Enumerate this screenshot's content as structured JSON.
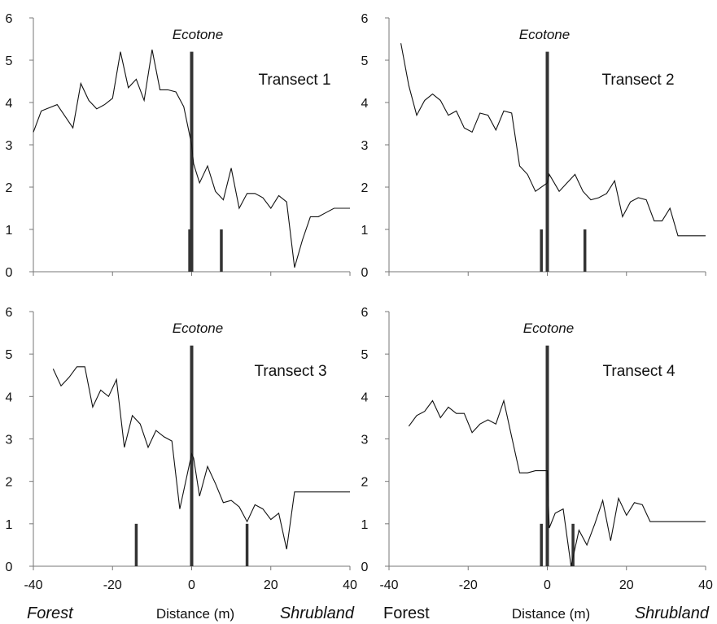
{
  "chart_data": [
    {
      "type": "line",
      "title": "Transect 1",
      "annotation": "Ecotone",
      "xlim": [
        -40,
        40
      ],
      "ylim": [
        0,
        6
      ],
      "xticks": [
        -40,
        -20,
        0,
        20,
        40
      ],
      "yticks": [
        0,
        1,
        2,
        3,
        4,
        5,
        6
      ],
      "series": [
        {
          "x": [
            -40,
            -38,
            -34,
            -30,
            -28,
            -26,
            -24,
            -22,
            -20,
            -18,
            -16,
            -14,
            -12,
            -10,
            -8,
            -6,
            -4,
            -2,
            0,
            0.5,
            2,
            4,
            6,
            8,
            10,
            12,
            14,
            16,
            18,
            20,
            22,
            24,
            26,
            28,
            30,
            32,
            34,
            36,
            38,
            40
          ],
          "y": [
            3.3,
            3.8,
            3.95,
            3.4,
            4.45,
            4.05,
            3.85,
            3.95,
            4.1,
            5.2,
            4.35,
            4.55,
            4.05,
            5.25,
            4.3,
            4.3,
            4.25,
            3.9,
            3.0,
            2.55,
            2.1,
            2.5,
            1.9,
            1.7,
            2.45,
            1.5,
            1.85,
            1.85,
            1.75,
            1.5,
            1.8,
            1.65,
            0.1,
            0.75,
            1.3,
            1.3,
            1.4,
            1.5,
            1.5,
            1.5
          ]
        }
      ],
      "bars": [
        {
          "x": -0.5,
          "y": 1.0
        },
        {
          "x": 0,
          "y": 5.2
        },
        {
          "x": 7.5,
          "y": 1.0
        }
      ]
    },
    {
      "type": "line",
      "title": "Transect 2",
      "annotation": "Ecotone",
      "xlim": [
        -40,
        40
      ],
      "ylim": [
        0,
        6
      ],
      "xticks": [
        -40,
        -20,
        0,
        20,
        40
      ],
      "yticks": [
        0,
        1,
        2,
        3,
        4,
        5,
        6
      ],
      "series": [
        {
          "x": [
            -37,
            -35,
            -33,
            -31,
            -29,
            -27,
            -25,
            -23,
            -21,
            -19,
            -17,
            -15,
            -13,
            -11,
            -9,
            -7,
            -5,
            -3,
            0,
            0.5,
            3,
            5,
            7,
            9,
            11,
            13,
            15,
            17,
            19,
            21,
            23,
            25,
            27,
            29,
            31,
            33,
            35,
            37,
            39,
            40
          ],
          "y": [
            5.4,
            4.4,
            3.7,
            4.05,
            4.2,
            4.05,
            3.7,
            3.8,
            3.4,
            3.3,
            3.75,
            3.7,
            3.35,
            3.8,
            3.75,
            2.5,
            2.3,
            1.9,
            2.1,
            2.3,
            1.9,
            2.1,
            2.3,
            1.9,
            1.7,
            1.75,
            1.85,
            2.15,
            1.3,
            1.65,
            1.75,
            1.7,
            1.2,
            1.2,
            1.5,
            0.85,
            0.85,
            0.85,
            0.85,
            0.85
          ]
        }
      ],
      "bars": [
        {
          "x": -1.5,
          "y": 1.0
        },
        {
          "x": 0,
          "y": 5.2
        },
        {
          "x": 9.5,
          "y": 1.0
        }
      ]
    },
    {
      "type": "line",
      "title": "Transect 3",
      "annotation": "Ecotone",
      "xlim": [
        -40,
        40
      ],
      "ylim": [
        0,
        6
      ],
      "xticks": [
        -40,
        -20,
        0,
        20,
        40
      ],
      "yticks": [
        0,
        1,
        2,
        3,
        4,
        5,
        6
      ],
      "series": [
        {
          "x": [
            -35,
            -33,
            -31,
            -29,
            -27,
            -25,
            -23,
            -21,
            -19,
            -17,
            -15,
            -13,
            -11,
            -9,
            -7,
            -5,
            -3,
            0,
            0.5,
            2,
            4,
            6,
            8,
            10,
            12,
            14,
            16,
            18,
            20,
            22,
            24,
            26,
            28,
            30,
            32,
            34,
            36,
            38,
            40
          ],
          "y": [
            4.65,
            4.25,
            4.45,
            4.7,
            4.7,
            3.75,
            4.15,
            4.0,
            4.4,
            2.8,
            3.55,
            3.35,
            2.8,
            3.2,
            3.05,
            2.95,
            1.35,
            2.65,
            2.55,
            1.65,
            2.35,
            1.95,
            1.5,
            1.55,
            1.4,
            1.05,
            1.45,
            1.35,
            1.1,
            1.25,
            0.4,
            1.75,
            1.75,
            1.75,
            1.75,
            1.75,
            1.75,
            1.75,
            1.75
          ],
          "note": ""
        }
      ],
      "bars": [
        {
          "x": -14,
          "y": 1.0
        },
        {
          "x": 0,
          "y": 5.2
        },
        {
          "x": 14,
          "y": 1.0
        }
      ]
    },
    {
      "type": "line",
      "title": "Transect 4",
      "annotation": "Ecotone",
      "xlim": [
        -40,
        40
      ],
      "ylim": [
        0,
        6
      ],
      "xticks": [
        -40,
        -20,
        0,
        20,
        40
      ],
      "yticks": [
        0,
        1,
        2,
        3,
        4,
        5,
        6
      ],
      "series": [
        {
          "x": [
            -35,
            -33,
            -31,
            -29,
            -27,
            -25,
            -23,
            -21,
            -19,
            -17,
            -15,
            -13,
            -11,
            -9,
            -7,
            -5,
            -3,
            0,
            0.5,
            2,
            4,
            6,
            8,
            10,
            12,
            14,
            16,
            18,
            20,
            22,
            24,
            26,
            28,
            30,
            32,
            34,
            36,
            38,
            40
          ],
          "y": [
            3.3,
            3.55,
            3.65,
            3.9,
            3.5,
            3.75,
            3.6,
            3.6,
            3.15,
            3.35,
            3.45,
            3.35,
            3.9,
            3.05,
            2.2,
            2.2,
            2.25,
            2.25,
            0.9,
            1.25,
            1.35,
            0.0,
            0.85,
            0.5,
            1.0,
            1.55,
            0.6,
            1.6,
            1.2,
            1.5,
            1.45,
            1.05,
            1.05,
            1.05,
            1.05,
            1.05,
            1.05,
            1.05,
            1.05
          ]
        }
      ],
      "bars": [
        {
          "x": -1.5,
          "y": 1.0
        },
        {
          "x": 0,
          "y": 5.2
        },
        {
          "x": 6.5,
          "y": 1.0
        }
      ]
    }
  ],
  "bottom_labels": {
    "left": {
      "forest": "Forest",
      "distance": "Distance (m)",
      "shrubland": "Shrubland"
    },
    "right": {
      "forest": "Forest",
      "distance": "Distance (m)",
      "shrubland": "Shrubland"
    }
  }
}
